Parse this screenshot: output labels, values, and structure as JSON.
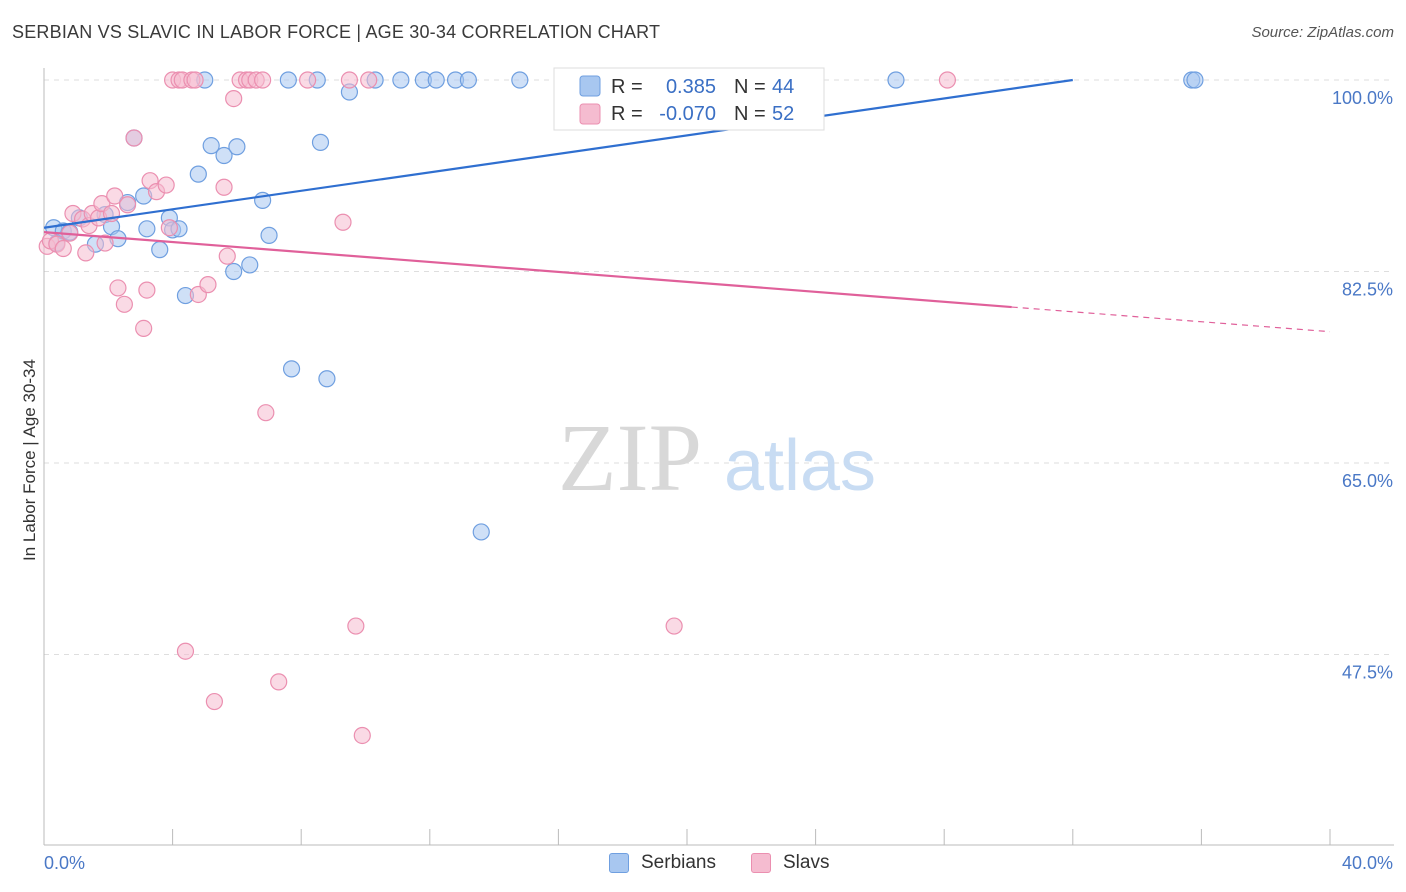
{
  "title": "SERBIAN VS SLAVIC IN LABOR FORCE | AGE 30-34 CORRELATION CHART",
  "source": "Source: ZipAtlas.com",
  "watermark": {
    "zip": "ZIP",
    "atlas": "atlas"
  },
  "chart_data": {
    "type": "scatter",
    "title": "SERBIAN VS SLAVIC IN LABOR FORCE | AGE 30-34 CORRELATION CHART",
    "xlabel": "",
    "ylabel": "In Labor Force | Age 30-34",
    "xlim": [
      0,
      40
    ],
    "ylim": [
      32.5,
      101.5
    ],
    "x_tick_labels": [
      "0.0%",
      "40.0%"
    ],
    "y_ticks": [
      100.0,
      82.5,
      65.0,
      47.5
    ],
    "y_tick_labels": [
      "100.0%",
      "82.5%",
      "65.0%",
      "47.5%"
    ],
    "legend_position": "top-center",
    "series": [
      {
        "name": "Serbians",
        "color": "#6f9fe0",
        "fill": "#a8c7f0",
        "line_color": "#2f6fd0",
        "R": "0.385",
        "N": "44",
        "trend": {
          "x": [
            0,
            32
          ],
          "y": [
            86.5,
            100.0
          ],
          "dashed_from": null
        },
        "points": [
          [
            0.3,
            86.5
          ],
          [
            0.4,
            85.1
          ],
          [
            0.6,
            86.2
          ],
          [
            0.8,
            86.1
          ],
          [
            1.1,
            87.4
          ],
          [
            1.6,
            85.0
          ],
          [
            1.9,
            87.7
          ],
          [
            2.1,
            86.6
          ],
          [
            2.3,
            85.5
          ],
          [
            2.6,
            88.8
          ],
          [
            2.8,
            94.7
          ],
          [
            3.1,
            89.4
          ],
          [
            3.2,
            86.4
          ],
          [
            3.6,
            84.5
          ],
          [
            3.9,
            87.4
          ],
          [
            4.0,
            86.3
          ],
          [
            4.2,
            86.4
          ],
          [
            4.4,
            80.3
          ],
          [
            4.8,
            91.4
          ],
          [
            5.0,
            100.0
          ],
          [
            5.2,
            94.0
          ],
          [
            5.6,
            93.1
          ],
          [
            5.9,
            82.5
          ],
          [
            6.0,
            93.9
          ],
          [
            6.4,
            83.1
          ],
          [
            6.8,
            89.0
          ],
          [
            7.0,
            85.8
          ],
          [
            7.6,
            100.0
          ],
          [
            7.7,
            73.6
          ],
          [
            8.5,
            100.0
          ],
          [
            8.6,
            94.3
          ],
          [
            8.8,
            72.7
          ],
          [
            9.5,
            98.9
          ],
          [
            10.3,
            100.0
          ],
          [
            11.1,
            100.0
          ],
          [
            11.8,
            100.0
          ],
          [
            12.2,
            100.0
          ],
          [
            12.8,
            100.0
          ],
          [
            13.2,
            100.0
          ],
          [
            13.6,
            58.7
          ],
          [
            14.8,
            100.0
          ],
          [
            26.5,
            100.0
          ],
          [
            35.7,
            100.0
          ],
          [
            35.8,
            100.0
          ]
        ]
      },
      {
        "name": "Slavs",
        "color": "#eb8fb0",
        "fill": "#f5bcd0",
        "line_color": "#e0609a",
        "R": "-0.070",
        "N": "52",
        "trend": {
          "x": [
            0,
            40
          ],
          "y": [
            86.1,
            77.0
          ],
          "dashed_from": 30.1
        },
        "points": [
          [
            0.1,
            84.8
          ],
          [
            0.2,
            85.3
          ],
          [
            0.4,
            85.0
          ],
          [
            0.6,
            84.6
          ],
          [
            0.8,
            86.0
          ],
          [
            0.9,
            87.8
          ],
          [
            1.2,
            87.3
          ],
          [
            1.3,
            84.2
          ],
          [
            1.4,
            86.7
          ],
          [
            1.5,
            87.8
          ],
          [
            1.7,
            87.4
          ],
          [
            1.8,
            88.7
          ],
          [
            1.9,
            85.1
          ],
          [
            2.1,
            87.8
          ],
          [
            2.2,
            89.4
          ],
          [
            2.3,
            81.0
          ],
          [
            2.5,
            79.5
          ],
          [
            2.6,
            88.6
          ],
          [
            2.8,
            94.7
          ],
          [
            3.1,
            77.3
          ],
          [
            3.2,
            80.8
          ],
          [
            3.3,
            90.8
          ],
          [
            3.5,
            89.8
          ],
          [
            3.8,
            90.4
          ],
          [
            3.9,
            86.5
          ],
          [
            4.0,
            100.0
          ],
          [
            4.2,
            100.0
          ],
          [
            4.3,
            100.0
          ],
          [
            4.4,
            47.8
          ],
          [
            4.6,
            100.0
          ],
          [
            4.7,
            100.0
          ],
          [
            4.8,
            80.4
          ],
          [
            5.1,
            81.3
          ],
          [
            5.3,
            43.2
          ],
          [
            5.6,
            90.2
          ],
          [
            5.7,
            83.9
          ],
          [
            5.9,
            98.3
          ],
          [
            6.1,
            100.0
          ],
          [
            6.3,
            100.0
          ],
          [
            6.4,
            100.0
          ],
          [
            6.6,
            100.0
          ],
          [
            6.8,
            100.0
          ],
          [
            6.9,
            69.6
          ],
          [
            7.3,
            45.0
          ],
          [
            8.2,
            100.0
          ],
          [
            9.3,
            87.0
          ],
          [
            9.5,
            100.0
          ],
          [
            9.7,
            50.1
          ],
          [
            9.9,
            40.1
          ],
          [
            10.1,
            100.0
          ],
          [
            19.6,
            50.1
          ],
          [
            28.1,
            100.0
          ]
        ]
      }
    ]
  },
  "legend": {
    "r_label": "R =",
    "n_label": "N =",
    "items": [
      {
        "r": "0.385",
        "n": "44"
      },
      {
        "r": "-0.070",
        "n": "52"
      }
    ]
  },
  "bottom_legend": [
    "Serbians",
    "Slavs"
  ]
}
